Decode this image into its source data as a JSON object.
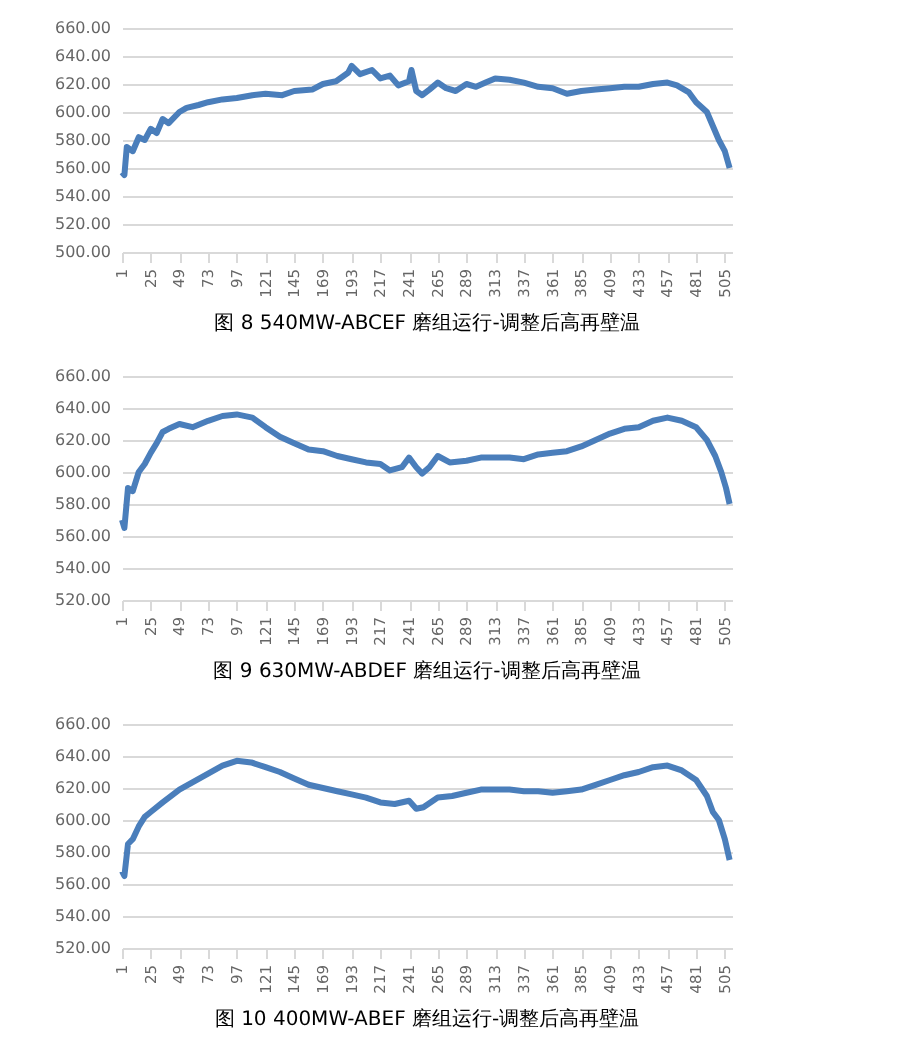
{
  "chart_data": [
    {
      "type": "line",
      "title": "图 8  540MW-ABCEF 磨组运行-调整后高再壁温",
      "x": [
        1,
        3,
        5,
        10,
        15,
        20,
        25,
        30,
        35,
        40,
        49,
        55,
        65,
        73,
        85,
        97,
        110,
        121,
        135,
        145,
        160,
        169,
        180,
        190,
        193,
        200,
        210,
        217,
        225,
        232,
        241,
        243,
        247,
        252,
        258,
        265,
        272,
        280,
        289,
        297,
        305,
        313,
        325,
        337,
        349,
        361,
        373,
        385,
        397,
        409,
        421,
        433,
        445,
        457,
        465,
        475,
        481,
        490,
        495,
        500,
        505,
        509
      ],
      "series": [
        {
          "color": "#4a7ebb",
          "values": [
            557,
            555,
            575,
            572,
            582,
            580,
            588,
            585,
            595,
            592,
            600,
            603,
            605,
            607,
            609,
            610,
            612,
            613,
            612,
            615,
            616,
            620,
            622,
            628,
            633,
            627,
            630,
            624,
            626,
            619,
            622,
            630,
            615,
            612,
            616,
            621,
            617,
            615,
            620,
            618,
            621,
            624,
            623,
            621,
            618,
            617,
            613,
            615,
            616,
            617,
            618,
            618,
            620,
            621,
            619,
            614,
            607,
            600,
            590,
            580,
            572,
            560
          ]
        }
      ],
      "xlim": [
        1,
        511
      ],
      "xticks": [
        1,
        25,
        49,
        73,
        97,
        121,
        145,
        169,
        193,
        217,
        241,
        265,
        289,
        313,
        337,
        361,
        385,
        409,
        433,
        457,
        481,
        505
      ],
      "ylim": [
        500,
        660
      ],
      "yticks": [
        {
          "value": 500,
          "label": "500.00"
        },
        {
          "value": 520,
          "label": "520.00"
        },
        {
          "value": 540,
          "label": "540.00"
        },
        {
          "value": 560,
          "label": "560.00"
        },
        {
          "value": 580,
          "label": "580.00"
        },
        {
          "value": 600,
          "label": "600.00"
        },
        {
          "value": 620,
          "label": "620.00"
        },
        {
          "value": 640,
          "label": "640.00"
        },
        {
          "value": 660,
          "label": "660.00"
        }
      ],
      "grid": "y",
      "marker": "none",
      "line_style": "solid"
    },
    {
      "type": "line",
      "title": "图 9 630MW-ABDEF 磨组运行-调整后高再壁温",
      "x": [
        1,
        3,
        6,
        10,
        15,
        20,
        25,
        30,
        35,
        40,
        49,
        60,
        73,
        85,
        97,
        110,
        121,
        133,
        145,
        157,
        169,
        181,
        193,
        205,
        217,
        225,
        235,
        241,
        247,
        252,
        258,
        265,
        275,
        289,
        301,
        313,
        325,
        337,
        349,
        361,
        373,
        385,
        397,
        409,
        421,
        433,
        445,
        457,
        469,
        481,
        490,
        497,
        502,
        506,
        509
      ],
      "series": [
        {
          "color": "#4a7ebb",
          "values": [
            570,
            565,
            590,
            588,
            600,
            605,
            612,
            618,
            625,
            627,
            630,
            628,
            632,
            635,
            636,
            634,
            628,
            622,
            618,
            614,
            613,
            610,
            608,
            606,
            605,
            601,
            603,
            609,
            603,
            599,
            603,
            610,
            606,
            607,
            609,
            609,
            609,
            608,
            611,
            612,
            613,
            616,
            620,
            624,
            627,
            628,
            632,
            634,
            632,
            628,
            620,
            610,
            600,
            590,
            580
          ]
        }
      ],
      "xlim": [
        1,
        511
      ],
      "xticks": [
        1,
        25,
        49,
        73,
        97,
        121,
        145,
        169,
        193,
        217,
        241,
        265,
        289,
        313,
        337,
        361,
        385,
        409,
        433,
        457,
        481,
        505
      ],
      "ylim": [
        520,
        660
      ],
      "yticks": [
        {
          "value": 520,
          "label": "520.00"
        },
        {
          "value": 540,
          "label": "540.00"
        },
        {
          "value": 560,
          "label": "560.00"
        },
        {
          "value": 580,
          "label": "580.00"
        },
        {
          "value": 600,
          "label": "600.00"
        },
        {
          "value": 620,
          "label": "620.00"
        },
        {
          "value": 640,
          "label": "640.00"
        },
        {
          "value": 660,
          "label": "660.00"
        }
      ],
      "grid": "y",
      "marker": "none",
      "line_style": "solid"
    },
    {
      "type": "line",
      "title": "图 10  400MW-ABEF 磨组运行-调整后高再壁温",
      "x": [
        1,
        3,
        6,
        10,
        15,
        20,
        25,
        35,
        49,
        61,
        73,
        85,
        97,
        109,
        121,
        133,
        145,
        157,
        169,
        181,
        193,
        205,
        217,
        229,
        241,
        247,
        253,
        265,
        277,
        289,
        301,
        313,
        325,
        337,
        349,
        361,
        373,
        385,
        397,
        409,
        421,
        433,
        445,
        457,
        469,
        481,
        490,
        495,
        500,
        505,
        509
      ],
      "series": [
        {
          "color": "#4a7ebb",
          "values": [
            568,
            565,
            585,
            588,
            596,
            602,
            605,
            611,
            619,
            624,
            629,
            634,
            637,
            636,
            633,
            630,
            626,
            622,
            620,
            618,
            616,
            614,
            611,
            610,
            612,
            607,
            608,
            614,
            615,
            617,
            619,
            619,
            619,
            618,
            618,
            617,
            618,
            619,
            622,
            625,
            628,
            630,
            633,
            634,
            631,
            625,
            615,
            605,
            600,
            588,
            575
          ]
        }
      ],
      "xlim": [
        1,
        511
      ],
      "xticks": [
        1,
        25,
        49,
        73,
        97,
        121,
        145,
        169,
        193,
        217,
        241,
        265,
        289,
        313,
        337,
        361,
        385,
        409,
        433,
        457,
        481,
        505
      ],
      "ylim": [
        520,
        660
      ],
      "yticks": [
        {
          "value": 520,
          "label": "520.00"
        },
        {
          "value": 540,
          "label": "540.00"
        },
        {
          "value": 560,
          "label": "560.00"
        },
        {
          "value": 580,
          "label": "580.00"
        },
        {
          "value": 600,
          "label": "600.00"
        },
        {
          "value": 620,
          "label": "620.00"
        },
        {
          "value": 640,
          "label": "640.00"
        },
        {
          "value": 660,
          "label": "660.00"
        }
      ],
      "grid": "y",
      "marker": "none",
      "line_style": "solid"
    }
  ]
}
